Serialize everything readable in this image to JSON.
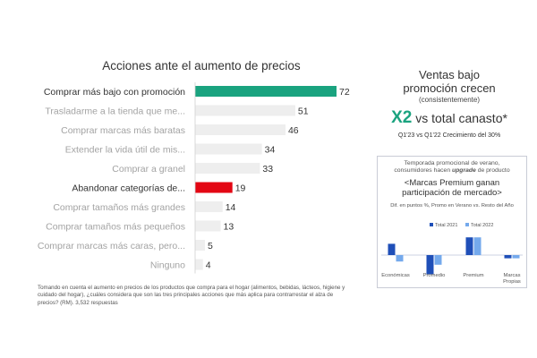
{
  "chart_data": [
    {
      "type": "bar",
      "orientation": "horizontal",
      "title": "Acciones ante el aumento de precios",
      "categories": [
        "Comprar más bajo con promoción",
        "Trasladarme a la tienda que me...",
        "Comprar marcas más baratas",
        "Extender la vida útil de mis...",
        "Comprar a granel",
        "Abandonar categorías de...",
        "Comprar tamaños más grandes",
        "Comprar tamaños más pequeños",
        "Comprar marcas más caras, pero...",
        "Ninguno"
      ],
      "values": [
        72,
        51,
        46,
        34,
        33,
        19,
        14,
        13,
        5,
        4
      ],
      "highlight": {
        "0": "#1aa37f",
        "5": "#e30613"
      },
      "default_color": "#eeeeee",
      "xlim": [
        0,
        80
      ],
      "grid": false
    },
    {
      "type": "bar",
      "title": "",
      "categories": [
        "Económicas",
        "Promedio",
        "Premium",
        "Marcas Propias"
      ],
      "series": [
        {
          "name": "Total 2021",
          "values": [
            3.5,
            -6,
            5.5,
            -1
          ]
        },
        {
          "name": "Total 2022",
          "values": [
            -2,
            -3,
            5.5,
            -1
          ]
        }
      ],
      "colors": [
        "#1f4fb8",
        "#74a9ec"
      ],
      "legend_position": "top",
      "ylim": [
        -7,
        7
      ],
      "grid": false
    }
  ],
  "footnote": "Tomando en cuenta el aumento en precios de los productos que compra para el hogar (alimentos, bebidas, lácteos, higiene y cuidado del hogar), ¿cuáles considera que son las tres principales acciones que más aplica para contrarrestar el alza de precios? (RM). 3,532 respuestas",
  "panel": {
    "title_line1": "Ventas bajo",
    "title_line2": "promoción crecen",
    "title_line3": "(consistentemente)",
    "x2": "X2",
    "vs_text": " vs total canasto*",
    "subtitle": "Q1'23 vs Q1'22 Crecimiento del 30%"
  },
  "box": {
    "header_line1": "Temporada promocional de verano,",
    "header_line2_pre": "consumidores hacen ",
    "header_line2_bold": "upgrade",
    "header_line2_post": " de producto",
    "title_line1": "<Marcas Premium ganan",
    "title_line2": "participación de mercado>",
    "axis_note": "Dif. en puntos %, Promo en Verano vs. Resto del Año"
  },
  "colors": {
    "accent_green": "#1aa37f",
    "highlight_red": "#e30613",
    "bar_gray": "#eeeeee",
    "label_gray": "#a3a3a3",
    "label_dark": "#333333"
  }
}
